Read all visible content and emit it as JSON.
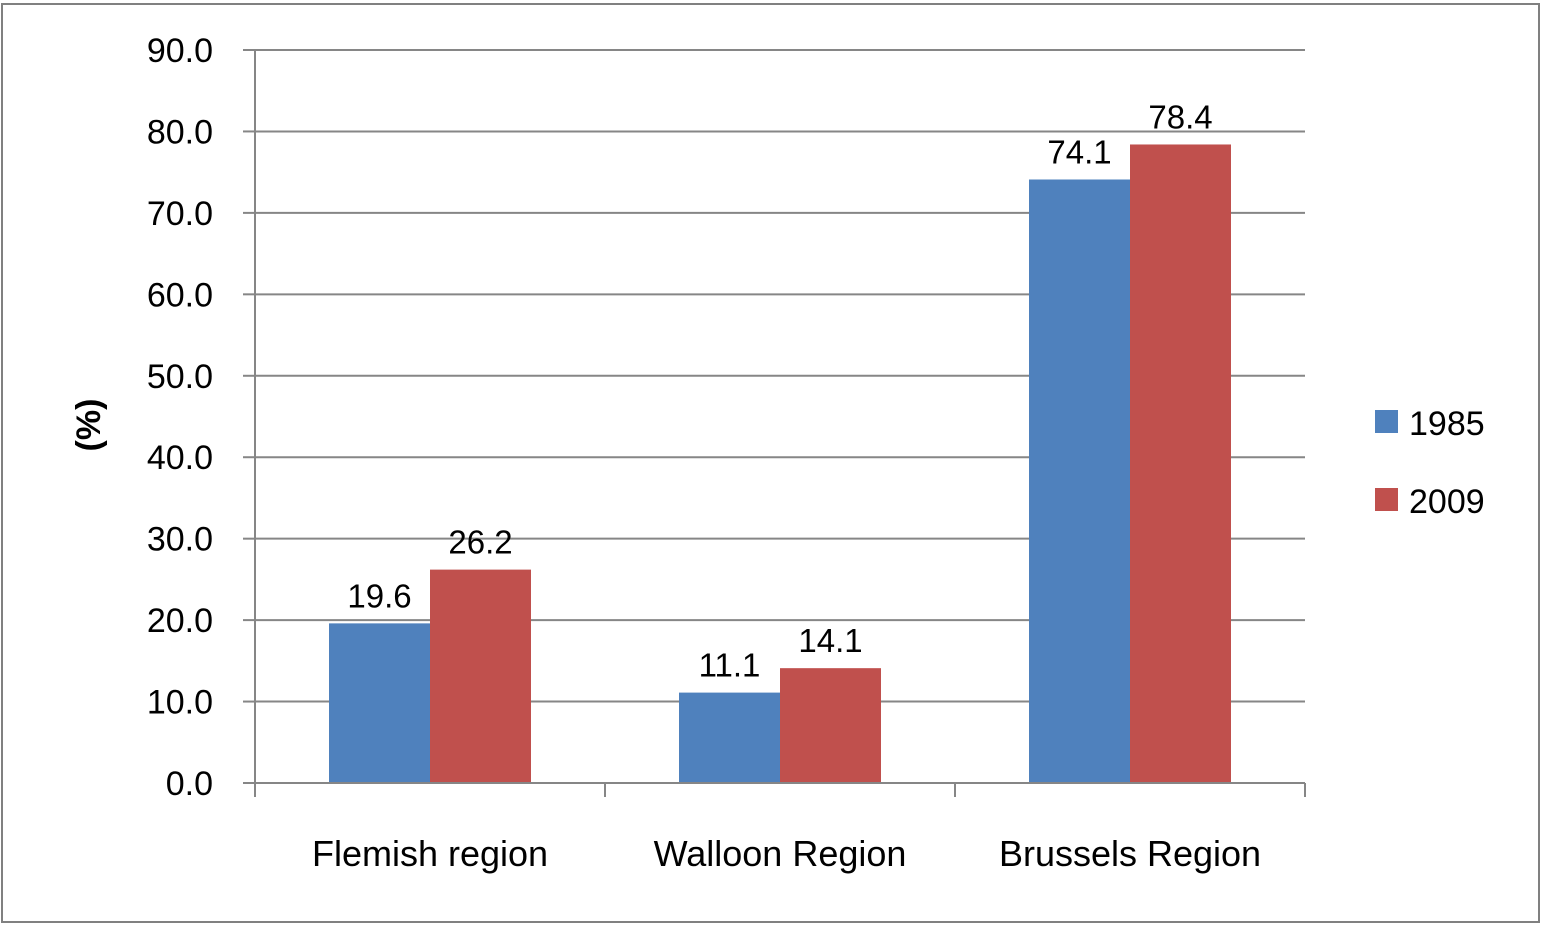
{
  "chart_data": {
    "type": "bar",
    "title": "",
    "xlabel": "",
    "ylabel": "(%)",
    "ylim": [
      0,
      90
    ],
    "ytick_step": 10,
    "ytick_decimals": 1,
    "grid": true,
    "legend_position": "right",
    "categories": [
      "Flemish region",
      "Walloon Region",
      "Brussels Region"
    ],
    "series": [
      {
        "name": "1985",
        "color": "#4F81BD",
        "values": [
          19.6,
          11.1,
          74.1
        ]
      },
      {
        "name": "2009",
        "color": "#C0504D",
        "values": [
          26.2,
          14.1,
          78.4
        ]
      }
    ]
  }
}
